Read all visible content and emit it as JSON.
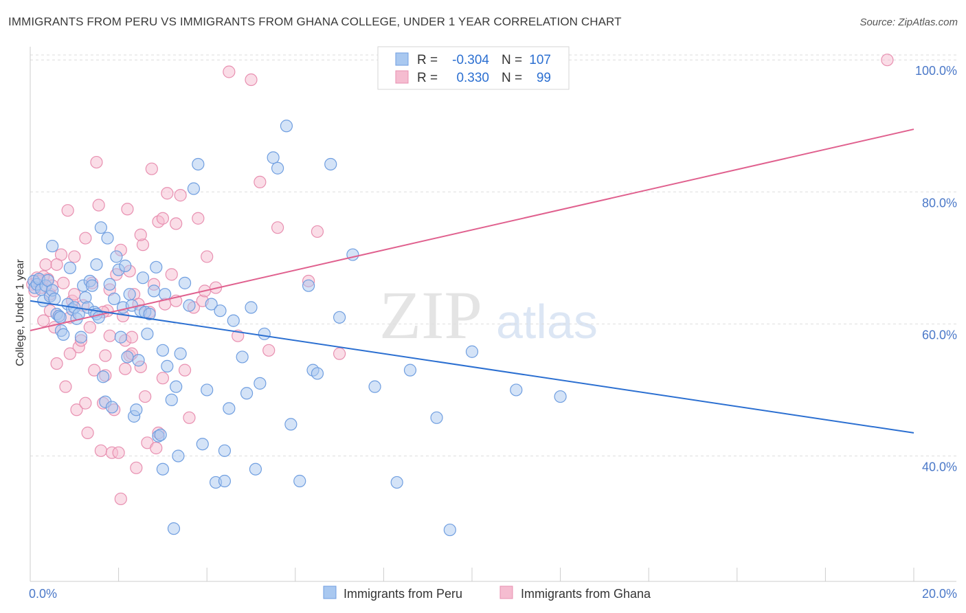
{
  "header": {
    "title": "IMMIGRANTS FROM PERU VS IMMIGRANTS FROM GHANA COLLEGE, UNDER 1 YEAR CORRELATION CHART",
    "source": "Source: ZipAtlas.com"
  },
  "watermark": {
    "zip": "ZIP",
    "atlas": "atlas"
  },
  "chart_data": {
    "type": "scatter",
    "title": "IMMIGRANTS FROM PERU VS IMMIGRANTS FROM GHANA COLLEGE, UNDER 1 YEAR CORRELATION CHART",
    "xlabel": "",
    "ylabel": "College, Under 1 year",
    "xlim": [
      0,
      20
    ],
    "ylim": [
      21,
      102
    ],
    "x_tick_labels": [
      "0.0%",
      "20.0%"
    ],
    "y_ticks": [
      40,
      60,
      80,
      100
    ],
    "y_tick_labels": [
      "40.0%",
      "60.0%",
      "80.0%",
      "100.0%"
    ],
    "grid": true,
    "legend_position": "bottom",
    "colors": {
      "peru_fill": "#a9c8f0",
      "peru_stroke": "#6f9ee0",
      "peru_line": "#2b6fd1",
      "ghana_fill": "#f5bcd0",
      "ghana_stroke": "#e88fb0",
      "ghana_line": "#e0608e",
      "tick_label": "#4a78c8",
      "grid": "#dddddd"
    },
    "stats": [
      {
        "series": "Immigrants from Peru",
        "r_label": "R =",
        "r": "-0.304",
        "n_label": "N =",
        "n": "107"
      },
      {
        "series": "Immigrants from Ghana",
        "r_label": "R =",
        "r": "0.330",
        "n_label": "N =",
        "n": "99"
      }
    ],
    "series": [
      {
        "name": "Immigrants from Peru",
        "trend": {
          "x": [
            0,
            20
          ],
          "y": [
            63.5,
            43.5
          ]
        },
        "points": [
          [
            0.08,
            66.5
          ],
          [
            0.1,
            65.5
          ],
          [
            0.15,
            66.0
          ],
          [
            0.2,
            66.8
          ],
          [
            0.25,
            65.2
          ],
          [
            0.3,
            63.5
          ],
          [
            0.35,
            65.8
          ],
          [
            0.4,
            66.6
          ],
          [
            0.45,
            64.2
          ],
          [
            0.5,
            65.1
          ],
          [
            0.55,
            63.8
          ],
          [
            0.6,
            61.5
          ],
          [
            0.65,
            61.2
          ],
          [
            0.7,
            59.0
          ],
          [
            0.75,
            58.4
          ],
          [
            0.85,
            63.0
          ],
          [
            0.9,
            68.5
          ],
          [
            0.95,
            62.2
          ],
          [
            1.0,
            62.5
          ],
          [
            1.05,
            60.8
          ],
          [
            1.1,
            61.5
          ],
          [
            1.2,
            65.8
          ],
          [
            1.25,
            64.0
          ],
          [
            1.3,
            62.5
          ],
          [
            1.35,
            66.5
          ],
          [
            1.4,
            65.8
          ],
          [
            1.45,
            61.8
          ],
          [
            1.5,
            61.5
          ],
          [
            1.55,
            61.0
          ],
          [
            1.6,
            74.6
          ],
          [
            1.65,
            52.0
          ],
          [
            1.7,
            48.2
          ],
          [
            1.8,
            66.0
          ],
          [
            1.85,
            47.4
          ],
          [
            1.9,
            63.8
          ],
          [
            1.95,
            70.2
          ],
          [
            2.0,
            68.2
          ],
          [
            2.05,
            58.0
          ],
          [
            2.1,
            62.5
          ],
          [
            2.15,
            68.8
          ],
          [
            2.2,
            55.0
          ],
          [
            2.25,
            64.5
          ],
          [
            2.3,
            62.8
          ],
          [
            2.35,
            46.0
          ],
          [
            2.4,
            47.0
          ],
          [
            2.45,
            54.5
          ],
          [
            2.5,
            62.0
          ],
          [
            2.55,
            67.0
          ],
          [
            2.6,
            61.8
          ],
          [
            2.65,
            58.5
          ],
          [
            2.7,
            61.5
          ],
          [
            2.8,
            65.0
          ],
          [
            2.85,
            68.6
          ],
          [
            2.9,
            43.0
          ],
          [
            3.0,
            56.0
          ],
          [
            3.05,
            64.5
          ],
          [
            3.1,
            53.6
          ],
          [
            3.2,
            48.5
          ],
          [
            3.3,
            50.5
          ],
          [
            3.35,
            40.0
          ],
          [
            3.4,
            55.5
          ],
          [
            3.5,
            66.2
          ],
          [
            3.6,
            62.8
          ],
          [
            3.7,
            80.5
          ],
          [
            3.8,
            84.2
          ],
          [
            3.9,
            41.8
          ],
          [
            4.0,
            50.0
          ],
          [
            4.1,
            63.0
          ],
          [
            4.2,
            36.0
          ],
          [
            4.3,
            62.0
          ],
          [
            4.4,
            40.8
          ],
          [
            4.5,
            47.2
          ],
          [
            4.6,
            60.5
          ],
          [
            4.8,
            55.0
          ],
          [
            4.9,
            49.5
          ],
          [
            5.0,
            62.5
          ],
          [
            5.1,
            38.0
          ],
          [
            5.2,
            51.0
          ],
          [
            5.3,
            58.5
          ],
          [
            5.5,
            85.2
          ],
          [
            5.6,
            83.6
          ],
          [
            5.8,
            90.0
          ],
          [
            5.9,
            44.8
          ],
          [
            6.1,
            36.2
          ],
          [
            6.3,
            65.8
          ],
          [
            6.4,
            53.0
          ],
          [
            6.5,
            52.5
          ],
          [
            6.8,
            84.2
          ],
          [
            7.0,
            61.0
          ],
          [
            7.3,
            70.5
          ],
          [
            7.8,
            50.5
          ],
          [
            8.3,
            36.0
          ],
          [
            8.6,
            53.0
          ],
          [
            9.2,
            45.8
          ],
          [
            9.5,
            28.8
          ],
          [
            10.0,
            55.8
          ],
          [
            11.0,
            50.0
          ],
          [
            12.0,
            49.0
          ],
          [
            4.4,
            36.2
          ],
          [
            3.0,
            38.0
          ],
          [
            1.15,
            58.0
          ],
          [
            1.75,
            73.0
          ],
          [
            2.95,
            43.2
          ],
          [
            3.25,
            29.0
          ],
          [
            0.5,
            71.8
          ],
          [
            0.68,
            61.0
          ],
          [
            1.5,
            69.0
          ]
        ]
      },
      {
        "name": "Immigrants from Ghana",
        "trend": {
          "x": [
            0,
            20
          ],
          "y": [
            59.0,
            89.5
          ]
        },
        "points": [
          [
            0.05,
            66.0
          ],
          [
            0.1,
            65.0
          ],
          [
            0.15,
            67.0
          ],
          [
            0.2,
            66.5
          ],
          [
            0.25,
            65.5
          ],
          [
            0.3,
            60.5
          ],
          [
            0.35,
            69.0
          ],
          [
            0.4,
            66.8
          ],
          [
            0.45,
            64.5
          ],
          [
            0.5,
            65.8
          ],
          [
            0.55,
            59.5
          ],
          [
            0.6,
            54.0
          ],
          [
            0.65,
            61.2
          ],
          [
            0.7,
            70.5
          ],
          [
            0.75,
            66.2
          ],
          [
            0.8,
            50.5
          ],
          [
            0.85,
            77.2
          ],
          [
            0.9,
            61.0
          ],
          [
            0.95,
            63.5
          ],
          [
            1.0,
            64.5
          ],
          [
            1.05,
            47.0
          ],
          [
            1.1,
            56.5
          ],
          [
            1.15,
            57.5
          ],
          [
            1.2,
            62.8
          ],
          [
            1.25,
            73.0
          ],
          [
            1.3,
            43.5
          ],
          [
            1.35,
            59.5
          ],
          [
            1.4,
            66.2
          ],
          [
            1.45,
            53.0
          ],
          [
            1.5,
            84.5
          ],
          [
            1.55,
            78.0
          ],
          [
            1.6,
            40.8
          ],
          [
            1.65,
            48.0
          ],
          [
            1.7,
            55.2
          ],
          [
            1.75,
            62.0
          ],
          [
            1.8,
            65.2
          ],
          [
            1.85,
            40.5
          ],
          [
            1.9,
            47.0
          ],
          [
            1.95,
            67.5
          ],
          [
            2.0,
            40.5
          ],
          [
            2.05,
            33.5
          ],
          [
            2.1,
            61.2
          ],
          [
            2.15,
            57.5
          ],
          [
            2.2,
            77.4
          ],
          [
            2.25,
            55.2
          ],
          [
            2.3,
            58.0
          ],
          [
            2.35,
            64.5
          ],
          [
            2.4,
            38.2
          ],
          [
            2.45,
            63.0
          ],
          [
            2.5,
            53.5
          ],
          [
            2.55,
            72.0
          ],
          [
            2.6,
            49.0
          ],
          [
            2.65,
            42.0
          ],
          [
            2.7,
            61.8
          ],
          [
            2.75,
            83.5
          ],
          [
            2.8,
            66.0
          ],
          [
            2.85,
            41.2
          ],
          [
            2.9,
            75.5
          ],
          [
            3.0,
            76.0
          ],
          [
            3.05,
            63.0
          ],
          [
            3.1,
            79.8
          ],
          [
            3.2,
            67.5
          ],
          [
            3.3,
            75.2
          ],
          [
            3.4,
            79.5
          ],
          [
            3.5,
            53.0
          ],
          [
            3.6,
            45.8
          ],
          [
            3.7,
            62.5
          ],
          [
            3.8,
            76.0
          ],
          [
            3.9,
            63.5
          ],
          [
            4.0,
            70.2
          ],
          [
            4.2,
            65.5
          ],
          [
            4.5,
            98.2
          ],
          [
            4.7,
            58.2
          ],
          [
            5.0,
            97.0
          ],
          [
            5.2,
            81.5
          ],
          [
            5.4,
            56.0
          ],
          [
            5.6,
            74.6
          ],
          [
            6.3,
            66.5
          ],
          [
            6.5,
            74.0
          ],
          [
            7.0,
            55.5
          ],
          [
            19.4,
            100.0
          ],
          [
            0.6,
            69.0
          ],
          [
            1.0,
            70.2
          ],
          [
            2.15,
            53.2
          ],
          [
            1.25,
            48.0
          ],
          [
            0.9,
            55.5
          ],
          [
            1.65,
            61.8
          ],
          [
            2.05,
            71.2
          ],
          [
            2.3,
            55.5
          ],
          [
            3.3,
            63.5
          ],
          [
            0.3,
            67.2
          ],
          [
            0.45,
            62.0
          ],
          [
            1.8,
            58.2
          ],
          [
            2.5,
            73.5
          ],
          [
            3.0,
            51.8
          ],
          [
            2.9,
            43.5
          ],
          [
            1.7,
            52.2
          ],
          [
            2.25,
            68.0
          ],
          [
            3.95,
            65.0
          ]
        ]
      }
    ]
  }
}
